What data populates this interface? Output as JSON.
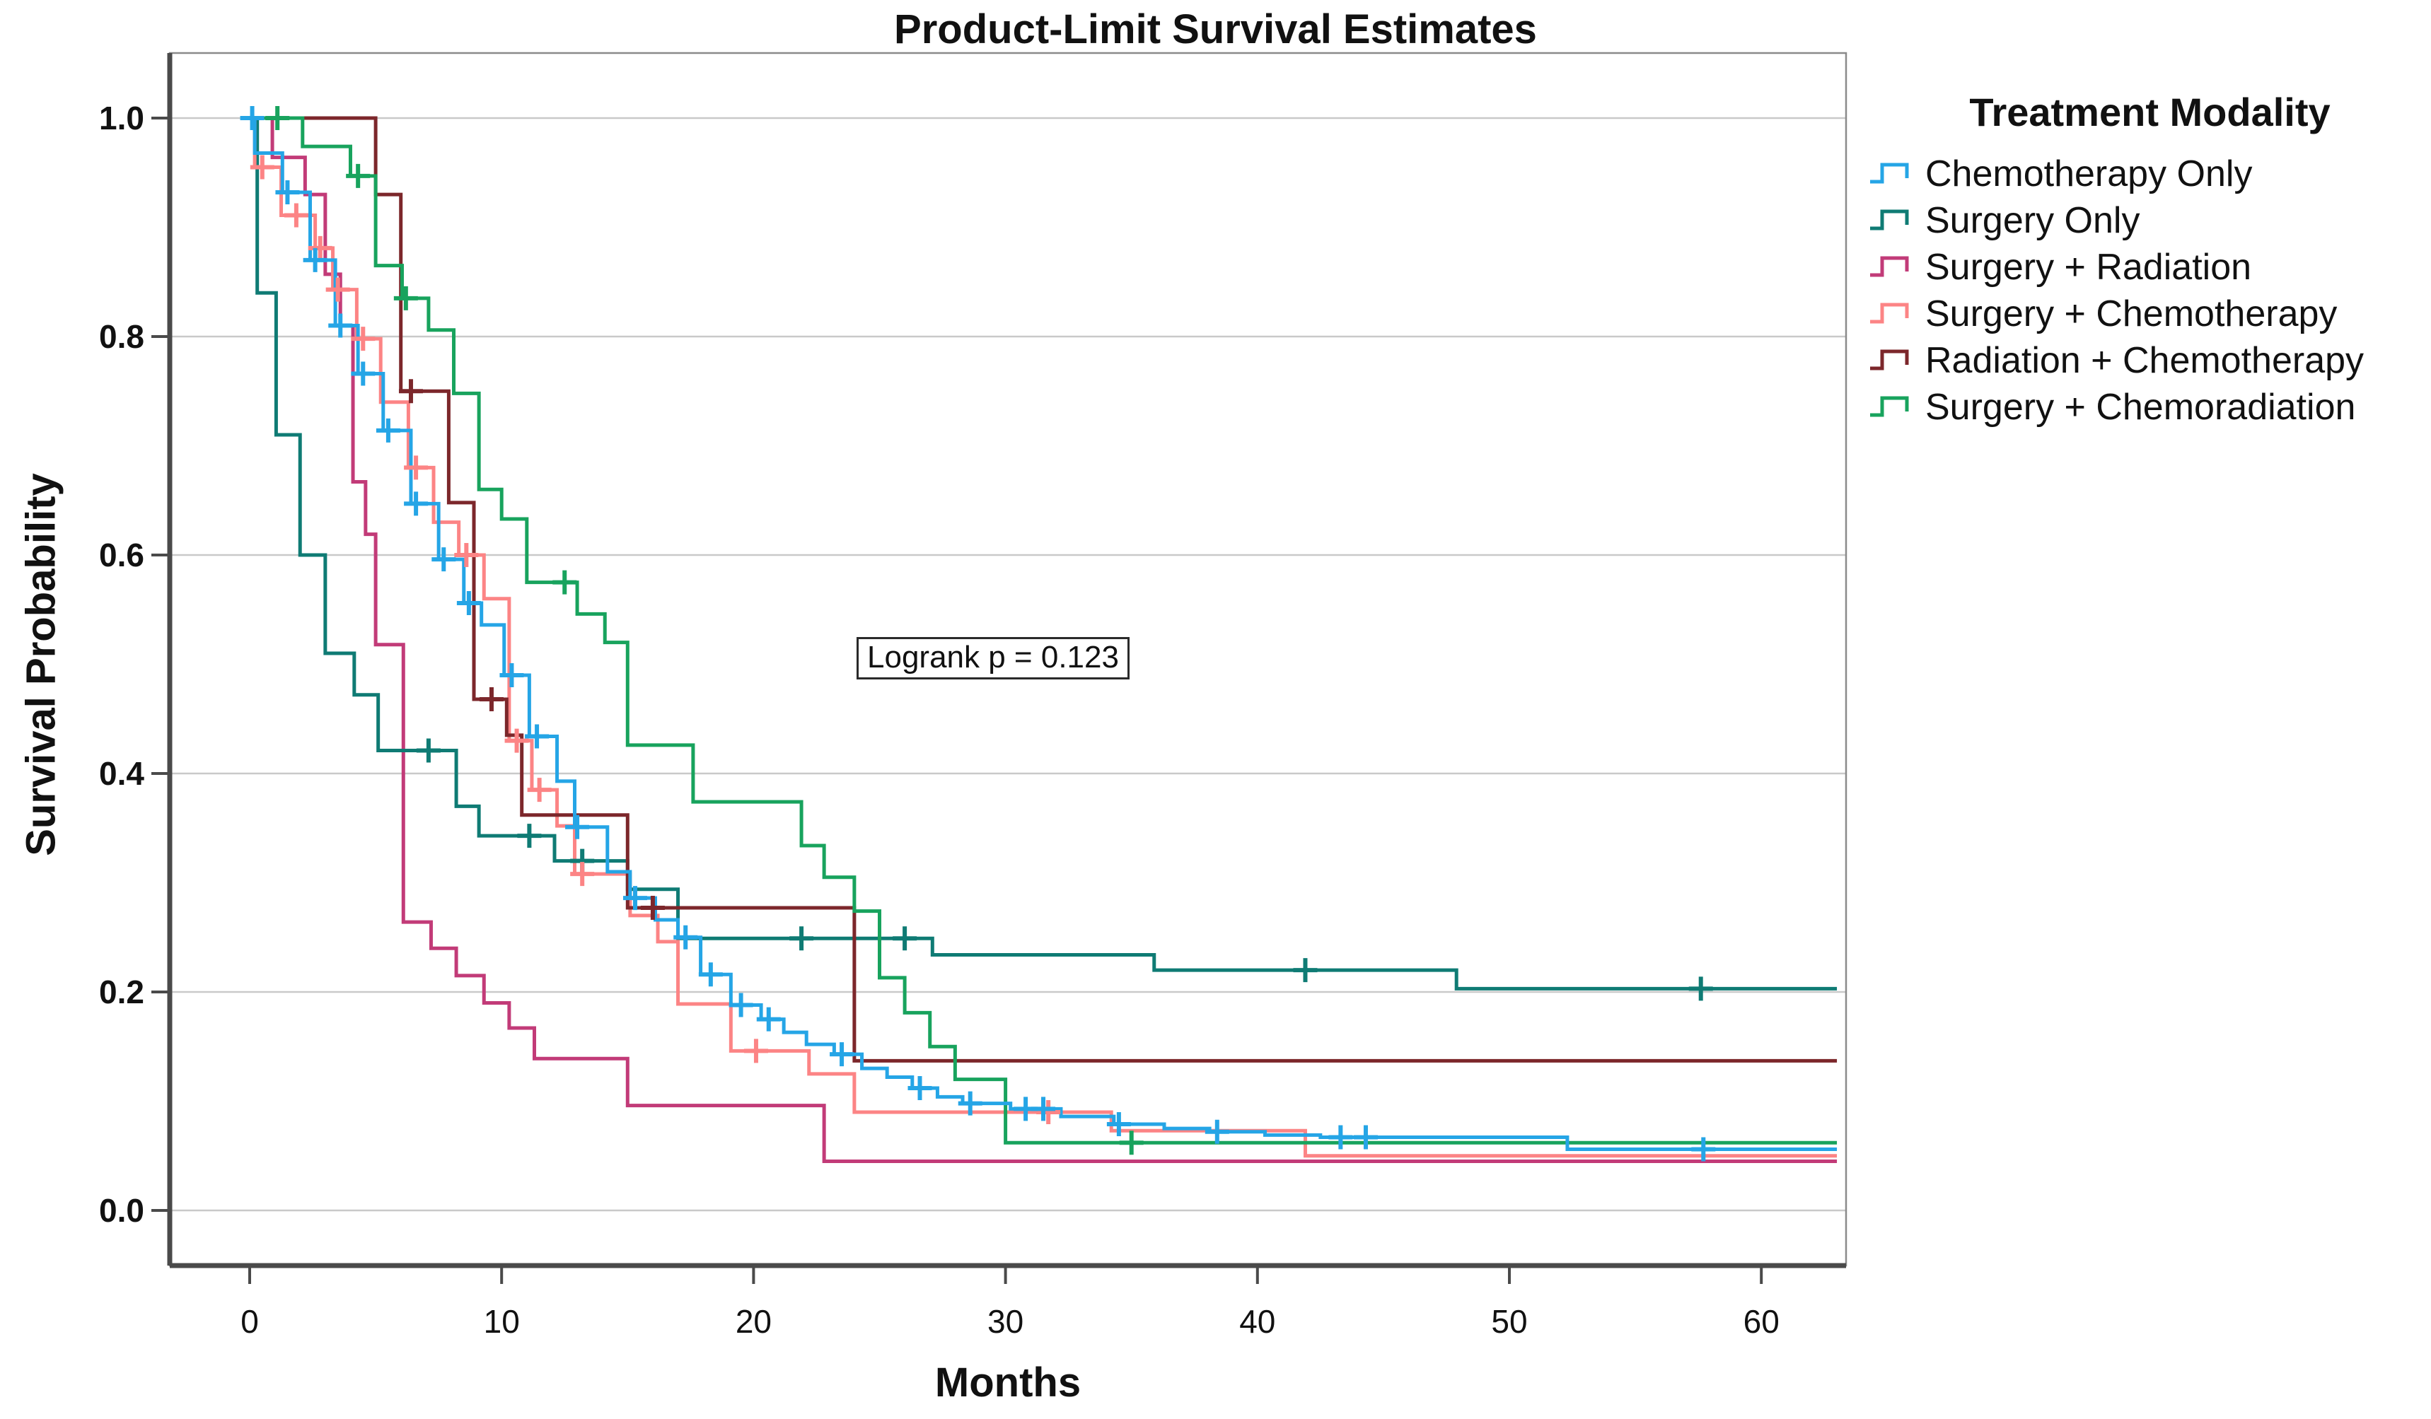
{
  "figure": {
    "background": "#ffffff"
  },
  "chart_data": {
    "type": "line",
    "subtype": "kaplan_meier_step_plot",
    "title": "Product-Limit Survival Estimates",
    "xlabel": "Months",
    "ylabel": "Survival Probability",
    "xlim": [
      0,
      63
    ],
    "ylim": [
      0.0,
      1.0
    ],
    "x_ticks": [
      0,
      10,
      20,
      30,
      40,
      50,
      60
    ],
    "y_ticks": [
      0.0,
      0.2,
      0.4,
      0.6,
      0.8,
      1.0
    ],
    "grid": "horizontal",
    "annotation": {
      "text": "Logrank p = 0.123",
      "x_month": 24.2,
      "y_prob": 0.52
    },
    "legend": {
      "title": "Treatment Modality",
      "position": "right"
    },
    "colors": {
      "grid": "#c9c9c9",
      "frame": "#8a8a8a",
      "axis": "#4a4a4a",
      "text": "#111111"
    },
    "series": [
      {
        "name": "Chemotherapy Only",
        "color": "#25a5e6",
        "steps": [
          [
            0,
            1.0
          ],
          [
            0.2,
            0.968
          ],
          [
            1.3,
            0.932
          ],
          [
            2.4,
            0.87
          ],
          [
            3.4,
            0.81
          ],
          [
            4.3,
            0.766
          ],
          [
            5.3,
            0.714
          ],
          [
            6.4,
            0.647
          ],
          [
            7.5,
            0.596
          ],
          [
            8.5,
            0.556
          ],
          [
            9.2,
            0.536
          ],
          [
            10.1,
            0.49
          ],
          [
            11.1,
            0.434
          ],
          [
            12.2,
            0.393
          ],
          [
            12.9,
            0.351
          ],
          [
            14.2,
            0.31
          ],
          [
            15.1,
            0.286
          ],
          [
            16.1,
            0.266
          ],
          [
            17.0,
            0.25
          ],
          [
            17.9,
            0.216
          ],
          [
            19.1,
            0.188
          ],
          [
            20.3,
            0.175
          ],
          [
            21.2,
            0.163
          ],
          [
            22.1,
            0.152
          ],
          [
            23.2,
            0.143
          ],
          [
            24.3,
            0.13
          ],
          [
            25.3,
            0.122
          ],
          [
            26.3,
            0.112
          ],
          [
            27.3,
            0.104
          ],
          [
            28.3,
            0.098
          ],
          [
            30.2,
            0.093
          ],
          [
            32.2,
            0.086
          ],
          [
            34.3,
            0.079
          ],
          [
            36.3,
            0.075
          ],
          [
            38.1,
            0.072
          ],
          [
            40.3,
            0.069
          ],
          [
            42.5,
            0.067
          ],
          [
            52.3,
            0.056
          ],
          [
            63,
            0.056
          ]
        ],
        "censors": [
          [
            0.1,
            1.0
          ],
          [
            1.5,
            0.932
          ],
          [
            2.6,
            0.87
          ],
          [
            3.6,
            0.81
          ],
          [
            4.5,
            0.766
          ],
          [
            5.5,
            0.714
          ],
          [
            6.6,
            0.647
          ],
          [
            7.7,
            0.596
          ],
          [
            8.7,
            0.556
          ],
          [
            10.4,
            0.49
          ],
          [
            11.4,
            0.434
          ],
          [
            13.0,
            0.351
          ],
          [
            15.3,
            0.286
          ],
          [
            17.3,
            0.25
          ],
          [
            18.3,
            0.216
          ],
          [
            19.5,
            0.188
          ],
          [
            20.6,
            0.175
          ],
          [
            23.5,
            0.143
          ],
          [
            26.6,
            0.112
          ],
          [
            28.6,
            0.098
          ],
          [
            30.8,
            0.093
          ],
          [
            31.5,
            0.093
          ],
          [
            34.5,
            0.079
          ],
          [
            38.4,
            0.072
          ],
          [
            43.3,
            0.067
          ],
          [
            44.3,
            0.067
          ],
          [
            57.7,
            0.056
          ]
        ]
      },
      {
        "name": "Surgery Only",
        "color": "#0f7b74",
        "steps": [
          [
            0,
            1.0
          ],
          [
            0.3,
            0.84
          ],
          [
            1.05,
            0.71
          ],
          [
            2.0,
            0.6
          ],
          [
            3.0,
            0.51
          ],
          [
            4.15,
            0.472
          ],
          [
            5.1,
            0.421
          ],
          [
            8.2,
            0.37
          ],
          [
            9.1,
            0.343
          ],
          [
            12.1,
            0.32
          ],
          [
            15.0,
            0.294
          ],
          [
            17.0,
            0.249
          ],
          [
            27.1,
            0.234
          ],
          [
            35.9,
            0.22
          ],
          [
            47.9,
            0.203
          ],
          [
            63,
            0.203
          ]
        ],
        "censors": [
          [
            7.1,
            0.421
          ],
          [
            11.1,
            0.343
          ],
          [
            13.2,
            0.32
          ],
          [
            21.9,
            0.249
          ],
          [
            26.0,
            0.249
          ],
          [
            41.9,
            0.22
          ],
          [
            57.6,
            0.203
          ]
        ]
      },
      {
        "name": "Surgery + Radiation",
        "color": "#c23b78",
        "steps": [
          [
            0,
            1.0
          ],
          [
            0.9,
            0.964
          ],
          [
            2.2,
            0.93
          ],
          [
            3.0,
            0.857
          ],
          [
            3.6,
            0.81
          ],
          [
            4.1,
            0.667
          ],
          [
            4.6,
            0.619
          ],
          [
            5.0,
            0.518
          ],
          [
            6.1,
            0.264
          ],
          [
            7.2,
            0.24
          ],
          [
            8.2,
            0.215
          ],
          [
            9.3,
            0.19
          ],
          [
            10.3,
            0.167
          ],
          [
            11.3,
            0.139
          ],
          [
            15.0,
            0.096
          ],
          [
            22.8,
            0.045
          ],
          [
            63,
            0.045
          ]
        ],
        "censors": []
      },
      {
        "name": "Surgery + Chemotherapy",
        "color": "#fc8485",
        "steps": [
          [
            0,
            1.0
          ],
          [
            0.2,
            0.955
          ],
          [
            1.25,
            0.911
          ],
          [
            2.6,
            0.881
          ],
          [
            3.3,
            0.843
          ],
          [
            4.25,
            0.798
          ],
          [
            5.2,
            0.74
          ],
          [
            6.3,
            0.68
          ],
          [
            7.3,
            0.63
          ],
          [
            8.3,
            0.6
          ],
          [
            9.3,
            0.56
          ],
          [
            10.3,
            0.43
          ],
          [
            11.2,
            0.385
          ],
          [
            12.2,
            0.352
          ],
          [
            12.9,
            0.308
          ],
          [
            15.1,
            0.27
          ],
          [
            16.2,
            0.246
          ],
          [
            17.0,
            0.189
          ],
          [
            19.1,
            0.146
          ],
          [
            22.2,
            0.125
          ],
          [
            24.0,
            0.09
          ],
          [
            34.2,
            0.073
          ],
          [
            41.9,
            0.05
          ],
          [
            63,
            0.05
          ]
        ],
        "censors": [
          [
            0.5,
            0.955
          ],
          [
            1.85,
            0.911
          ],
          [
            2.8,
            0.881
          ],
          [
            3.5,
            0.843
          ],
          [
            4.5,
            0.798
          ],
          [
            6.6,
            0.68
          ],
          [
            8.6,
            0.6
          ],
          [
            10.6,
            0.43
          ],
          [
            11.5,
            0.385
          ],
          [
            13.2,
            0.308
          ],
          [
            20.1,
            0.146
          ],
          [
            31.7,
            0.09
          ]
        ]
      },
      {
        "name": "Radiation + Chemotherapy",
        "color": "#7c272b",
        "steps": [
          [
            0,
            1.0
          ],
          [
            5.0,
            0.93
          ],
          [
            6.0,
            0.75
          ],
          [
            7.9,
            0.648
          ],
          [
            8.9,
            0.468
          ],
          [
            10.2,
            0.435
          ],
          [
            10.8,
            0.362
          ],
          [
            15.0,
            0.277
          ],
          [
            24.0,
            0.137
          ],
          [
            63,
            0.137
          ]
        ],
        "censors": [
          [
            6.4,
            0.75
          ],
          [
            9.6,
            0.468
          ],
          [
            16.0,
            0.277
          ]
        ]
      },
      {
        "name": "Surgery + Chemoradiation",
        "color": "#18a35d",
        "steps": [
          [
            0,
            1.0
          ],
          [
            2.1,
            0.974
          ],
          [
            4.0,
            0.947
          ],
          [
            5.0,
            0.865
          ],
          [
            6.05,
            0.835
          ],
          [
            7.1,
            0.806
          ],
          [
            8.1,
            0.748
          ],
          [
            9.1,
            0.66
          ],
          [
            10.0,
            0.633
          ],
          [
            11.0,
            0.575
          ],
          [
            13.0,
            0.546
          ],
          [
            14.1,
            0.52
          ],
          [
            15.0,
            0.426
          ],
          [
            17.6,
            0.374
          ],
          [
            21.9,
            0.334
          ],
          [
            22.8,
            0.305
          ],
          [
            24.0,
            0.274
          ],
          [
            25.0,
            0.213
          ],
          [
            26.0,
            0.181
          ],
          [
            27.0,
            0.15
          ],
          [
            28.0,
            0.12
          ],
          [
            30.0,
            0.062
          ],
          [
            63,
            0.062
          ]
        ],
        "censors": [
          [
            1.1,
            1.0
          ],
          [
            4.3,
            0.947
          ],
          [
            6.2,
            0.835
          ],
          [
            12.5,
            0.575
          ],
          [
            35.0,
            0.062
          ]
        ]
      }
    ]
  }
}
